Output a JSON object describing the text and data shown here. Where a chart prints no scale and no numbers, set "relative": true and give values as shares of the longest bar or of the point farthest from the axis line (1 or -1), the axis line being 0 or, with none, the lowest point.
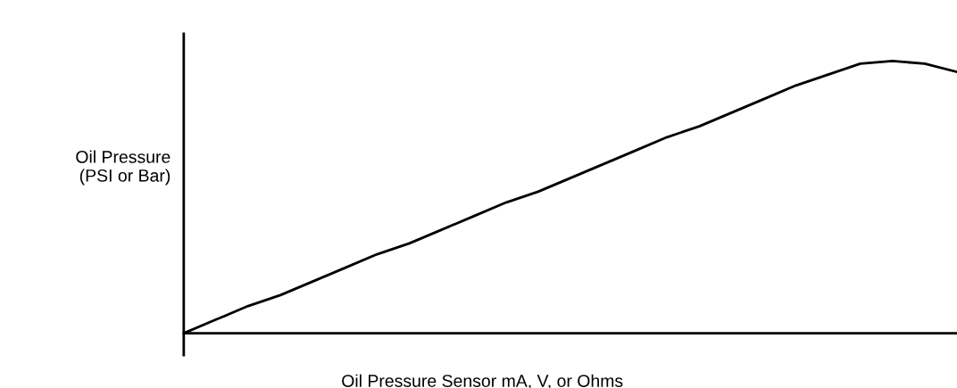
{
  "chart_data": {
    "type": "line",
    "relative": true,
    "xlabel": "Oil Pressure Sensor mA, V, or Ohms",
    "ylabel": "Oil Pressure\n(PSI or Bar)",
    "categories": [
      null,
      null,
      null,
      null,
      null,
      null,
      null,
      null,
      null,
      null,
      null,
      null,
      null,
      null,
      null,
      null,
      null,
      null,
      null,
      null,
      null,
      null,
      null,
      null,
      null
    ],
    "series": [
      {
        "color": "#000000",
        "values": [
          0,
          0.05,
          0.1,
          0.14,
          0.19,
          0.24,
          0.29,
          0.33,
          0.38,
          0.43,
          0.48,
          0.52,
          0.57,
          0.62,
          0.67,
          0.72,
          0.76,
          0.81,
          0.86,
          0.91,
          0.95,
          0.99,
          1.0,
          0.99,
          0.96
        ]
      }
    ],
    "marker": "none",
    "line_style": "solid"
  }
}
